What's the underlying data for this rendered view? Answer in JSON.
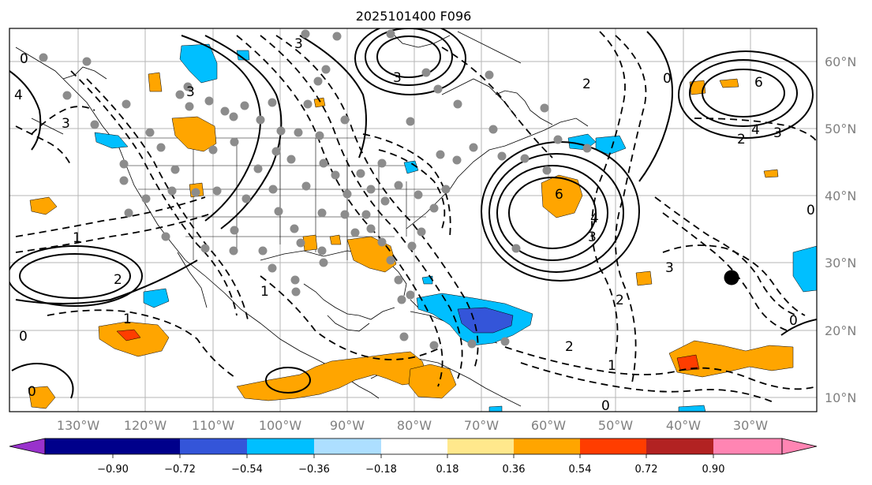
{
  "map": {
    "title": "2025101400 F096",
    "lon_labels": [
      "130°W",
      "120°W",
      "110°W",
      "100°W",
      "90°W",
      "80°W",
      "70°W",
      "60°W",
      "50°W",
      "40°W",
      "30°W"
    ],
    "lat_labels": [
      "60°N",
      "50°N",
      "40°N",
      "30°N",
      "20°N",
      "10°N"
    ],
    "contour_labels": [
      "6",
      "6",
      "4",
      "3",
      "2",
      "3",
      "3",
      "3",
      "2",
      "2",
      "1",
      "1",
      "0",
      "0",
      "0",
      "0",
      "0",
      "0",
      "1",
      "2",
      "3",
      "3",
      "4",
      "2",
      "1",
      "0",
      "3",
      "4"
    ]
  },
  "colorbar": {
    "ticks": [
      "−0.90",
      "−0.72",
      "−0.54",
      "−0.36",
      "−0.18",
      "0.18",
      "0.36",
      "0.54",
      "0.72",
      "0.90"
    ],
    "colors": {
      "under": "#9932CC",
      "c1": "#00008B",
      "c2": "#3455D9",
      "c3": "#00BFFF",
      "c4": "#ADDFFF",
      "c5": "#FFFFFF",
      "c6": "#FFE88C",
      "c7": "#FFA500",
      "c8": "#FF3D00",
      "c9": "#B22222",
      "over": "#FF85B3"
    }
  },
  "markers": {
    "black_dot": {
      "lon": -32.5,
      "lat": 28
    }
  },
  "colors": {
    "positive_fill": "#FFA500",
    "negative_fill": "#00BFFF",
    "strong_negative": "#3455D9",
    "station_dots": "#8C8C8C"
  }
}
